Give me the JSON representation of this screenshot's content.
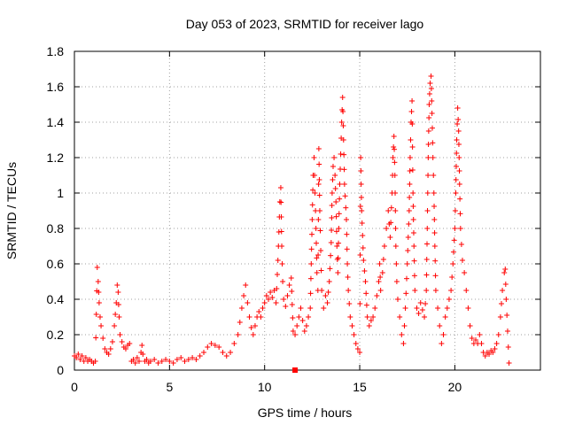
{
  "chart_data": {
    "type": "scatter",
    "title": "Day 053 of 2023, SRMTID for receiver lago",
    "xlabel": "GPS time / hours",
    "ylabel": "SRMTID / TECUs",
    "xlim": [
      0,
      24.5
    ],
    "ylim": [
      0,
      1.8
    ],
    "xticks": [
      0,
      5,
      10,
      15,
      20
    ],
    "xtick_labels": [
      "0",
      "5",
      "10",
      "15",
      "20"
    ],
    "yticks": [
      0,
      0.2,
      0.4,
      0.6,
      0.8,
      1.0,
      1.2,
      1.4,
      1.6,
      1.8
    ],
    "ytick_labels": [
      "0",
      "0.2",
      "0.4",
      "0.6",
      "0.8",
      "1",
      "1.2",
      "1.4",
      "1.6",
      "1.8"
    ],
    "grid": true,
    "marker": "+",
    "series_color": "#ff0000",
    "series": [
      {
        "name": "SRMTID",
        "points": [
          [
            0.0,
            0.08
          ],
          [
            0.1,
            0.07
          ],
          [
            0.2,
            0.09
          ],
          [
            0.3,
            0.06
          ],
          [
            0.4,
            0.08
          ],
          [
            0.5,
            0.05
          ],
          [
            0.6,
            0.07
          ],
          [
            0.7,
            0.05
          ],
          [
            0.8,
            0.06
          ],
          [
            0.9,
            0.05
          ],
          [
            1.0,
            0.04
          ],
          [
            1.1,
            0.05
          ],
          [
            1.2,
            0.58
          ],
          [
            1.25,
            0.5
          ],
          [
            1.3,
            0.38
          ],
          [
            1.35,
            0.3
          ],
          [
            1.4,
            0.25
          ],
          [
            1.5,
            0.18
          ],
          [
            1.6,
            0.12
          ],
          [
            1.7,
            0.1
          ],
          [
            1.8,
            0.09
          ],
          [
            1.9,
            0.12
          ],
          [
            2.0,
            0.16
          ],
          [
            2.1,
            0.25
          ],
          [
            2.2,
            0.38
          ],
          [
            2.25,
            0.48
          ],
          [
            2.3,
            0.44
          ],
          [
            2.35,
            0.3
          ],
          [
            2.4,
            0.2
          ],
          [
            2.5,
            0.16
          ],
          [
            2.6,
            0.13
          ],
          [
            2.7,
            0.12
          ],
          [
            2.8,
            0.14
          ],
          [
            2.9,
            0.15
          ],
          [
            3.0,
            0.05
          ],
          [
            3.1,
            0.06
          ],
          [
            3.2,
            0.04
          ],
          [
            3.3,
            0.07
          ],
          [
            3.4,
            0.05
          ],
          [
            3.5,
            0.1
          ],
          [
            3.55,
            0.14
          ],
          [
            3.6,
            0.09
          ],
          [
            3.7,
            0.05
          ],
          [
            3.8,
            0.06
          ],
          [
            3.9,
            0.04
          ],
          [
            4.0,
            0.05
          ],
          [
            4.2,
            0.06
          ],
          [
            4.4,
            0.04
          ],
          [
            4.6,
            0.05
          ],
          [
            4.8,
            0.06
          ],
          [
            5.0,
            0.05
          ],
          [
            5.2,
            0.04
          ],
          [
            5.4,
            0.06
          ],
          [
            5.6,
            0.07
          ],
          [
            5.8,
            0.05
          ],
          [
            6.0,
            0.06
          ],
          [
            6.2,
            0.07
          ],
          [
            6.4,
            0.06
          ],
          [
            6.6,
            0.08
          ],
          [
            6.8,
            0.1
          ],
          [
            7.0,
            0.13
          ],
          [
            7.2,
            0.15
          ],
          [
            7.4,
            0.14
          ],
          [
            7.6,
            0.13
          ],
          [
            7.8,
            0.1
          ],
          [
            8.0,
            0.08
          ],
          [
            8.2,
            0.1
          ],
          [
            8.4,
            0.15
          ],
          [
            8.6,
            0.2
          ],
          [
            8.7,
            0.27
          ],
          [
            8.8,
            0.35
          ],
          [
            8.9,
            0.42
          ],
          [
            9.0,
            0.48
          ],
          [
            9.1,
            0.38
          ],
          [
            9.2,
            0.3
          ],
          [
            9.3,
            0.24
          ],
          [
            9.4,
            0.2
          ],
          [
            9.5,
            0.25
          ],
          [
            9.6,
            0.3
          ],
          [
            9.7,
            0.33
          ],
          [
            9.8,
            0.3
          ],
          [
            9.9,
            0.35
          ],
          [
            10.0,
            0.38
          ],
          [
            10.1,
            0.42
          ],
          [
            10.2,
            0.4
          ],
          [
            10.3,
            0.44
          ],
          [
            10.4,
            0.41
          ],
          [
            10.5,
            0.45
          ],
          [
            10.6,
            0.38
          ],
          [
            10.7,
            0.62
          ],
          [
            10.75,
            0.78
          ],
          [
            10.8,
            0.95
          ],
          [
            10.85,
            1.03
          ],
          [
            10.9,
            0.7
          ],
          [
            10.95,
            0.5
          ],
          [
            11.0,
            0.4
          ],
          [
            11.1,
            0.36
          ],
          [
            11.2,
            0.42
          ],
          [
            11.3,
            0.48
          ],
          [
            11.4,
            0.52
          ],
          [
            11.5,
            0.22
          ],
          [
            11.6,
            0.2
          ],
          [
            11.7,
            0.25
          ],
          [
            11.8,
            0.3
          ],
          [
            11.9,
            0.35
          ],
          [
            12.0,
            0.28
          ],
          [
            12.1,
            0.22
          ],
          [
            12.2,
            0.25
          ],
          [
            12.3,
            0.3
          ],
          [
            12.4,
            0.35
          ],
          [
            12.45,
            0.6
          ],
          [
            12.5,
            0.85
          ],
          [
            12.55,
            1.1
          ],
          [
            12.6,
            1.2
          ],
          [
            12.65,
            1.0
          ],
          [
            12.7,
            0.8
          ],
          [
            12.75,
            0.55
          ],
          [
            12.8,
            0.45
          ],
          [
            12.85,
            1.25
          ],
          [
            12.9,
            0.9
          ],
          [
            13.0,
            0.45
          ],
          [
            13.1,
            0.35
          ],
          [
            13.2,
            0.42
          ],
          [
            13.3,
            0.38
          ],
          [
            13.4,
            0.5
          ],
          [
            13.5,
            0.72
          ],
          [
            13.55,
            1.0
          ],
          [
            13.6,
            1.15
          ],
          [
            13.65,
            1.2
          ],
          [
            13.7,
            1.1
          ],
          [
            13.75,
            0.95
          ],
          [
            13.8,
            0.7
          ],
          [
            13.85,
            0.55
          ],
          [
            13.9,
            0.8
          ],
          [
            13.95,
            1.05
          ],
          [
            14.0,
            1.22
          ],
          [
            14.05,
            1.4
          ],
          [
            14.1,
            1.54
          ],
          [
            14.15,
            1.3
          ],
          [
            14.2,
            1.05
          ],
          [
            14.3,
            0.85
          ],
          [
            14.35,
            0.6
          ],
          [
            14.4,
            0.45
          ],
          [
            14.5,
            0.3
          ],
          [
            14.6,
            0.25
          ],
          [
            14.7,
            0.2
          ],
          [
            14.8,
            0.15
          ],
          [
            14.9,
            0.12
          ],
          [
            15.0,
            0.1
          ],
          [
            15.05,
            1.2
          ],
          [
            15.1,
            0.9
          ],
          [
            15.2,
            0.62
          ],
          [
            15.3,
            0.5
          ],
          [
            15.4,
            0.3
          ],
          [
            15.5,
            0.25
          ],
          [
            15.6,
            0.28
          ],
          [
            15.7,
            0.3
          ],
          [
            15.8,
            0.35
          ],
          [
            15.9,
            0.42
          ],
          [
            16.0,
            0.5
          ],
          [
            16.05,
            0.6
          ],
          [
            16.1,
            0.45
          ],
          [
            16.2,
            0.55
          ],
          [
            16.3,
            0.7
          ],
          [
            16.4,
            0.8
          ],
          [
            16.5,
            0.9
          ],
          [
            16.6,
            0.75
          ],
          [
            16.7,
            1.0
          ],
          [
            16.75,
            1.2
          ],
          [
            16.8,
            1.32
          ],
          [
            16.85,
            1.1
          ],
          [
            16.9,
            0.7
          ],
          [
            16.95,
            0.5
          ],
          [
            17.0,
            0.4
          ],
          [
            17.1,
            0.3
          ],
          [
            17.2,
            0.2
          ],
          [
            17.3,
            0.15
          ],
          [
            17.4,
            0.35
          ],
          [
            17.5,
            0.6
          ],
          [
            17.6,
            0.9
          ],
          [
            17.65,
            1.2
          ],
          [
            17.7,
            1.4
          ],
          [
            17.75,
            1.52
          ],
          [
            17.8,
            1.0
          ],
          [
            17.85,
            0.7
          ],
          [
            17.9,
            0.45
          ],
          [
            18.0,
            0.35
          ],
          [
            18.1,
            0.32
          ],
          [
            18.2,
            0.38
          ],
          [
            18.3,
            0.34
          ],
          [
            18.4,
            0.3
          ],
          [
            18.5,
            0.45
          ],
          [
            18.55,
            0.8
          ],
          [
            18.6,
            1.2
          ],
          [
            18.65,
            1.5
          ],
          [
            18.7,
            1.62
          ],
          [
            18.75,
            1.66
          ],
          [
            18.8,
            1.45
          ],
          [
            18.85,
            1.2
          ],
          [
            18.9,
            1.0
          ],
          [
            18.95,
            0.7
          ],
          [
            19.0,
            0.45
          ],
          [
            19.1,
            0.35
          ],
          [
            19.2,
            0.25
          ],
          [
            19.3,
            0.15
          ],
          [
            19.4,
            0.2
          ],
          [
            19.5,
            0.3
          ],
          [
            19.6,
            0.35
          ],
          [
            19.7,
            0.4
          ],
          [
            19.8,
            0.45
          ],
          [
            19.9,
            0.6
          ],
          [
            20.0,
            0.8
          ],
          [
            20.05,
            1.0
          ],
          [
            20.1,
            1.3
          ],
          [
            20.15,
            1.48
          ],
          [
            20.2,
            1.35
          ],
          [
            20.25,
            1.05
          ],
          [
            20.3,
            0.8
          ],
          [
            20.4,
            0.62
          ],
          [
            20.5,
            0.55
          ],
          [
            20.6,
            0.45
          ],
          [
            20.7,
            0.35
          ],
          [
            20.8,
            0.25
          ],
          [
            20.9,
            0.18
          ],
          [
            21.0,
            0.15
          ],
          [
            21.1,
            0.17
          ],
          [
            21.2,
            0.15
          ],
          [
            21.3,
            0.2
          ],
          [
            21.4,
            0.15
          ],
          [
            21.5,
            0.1
          ],
          [
            21.6,
            0.08
          ],
          [
            21.7,
            0.1
          ],
          [
            21.8,
            0.09
          ],
          [
            21.9,
            0.11
          ],
          [
            22.0,
            0.1
          ],
          [
            22.1,
            0.12
          ],
          [
            22.2,
            0.15
          ],
          [
            22.3,
            0.2
          ],
          [
            22.4,
            0.3
          ],
          [
            22.5,
            0.45
          ],
          [
            22.6,
            0.55
          ],
          [
            22.65,
            0.57
          ],
          [
            22.7,
            0.4
          ],
          [
            22.85,
            0.04
          ]
        ]
      }
    ],
    "outlier_points": [
      [
        11.6,
        0.0
      ]
    ]
  }
}
